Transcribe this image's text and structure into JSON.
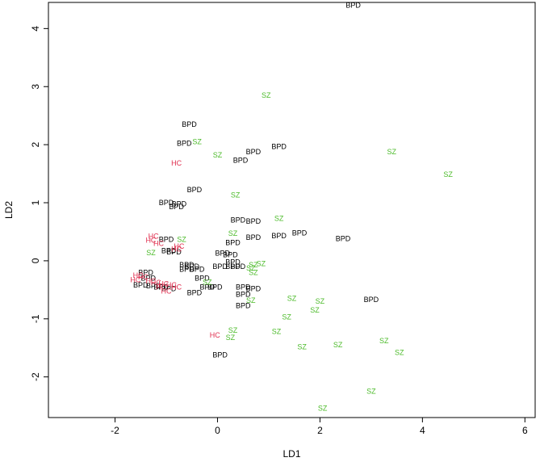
{
  "chart_data": {
    "type": "scatter",
    "title": "",
    "xlabel": "LD1",
    "ylabel": "LD2",
    "xlim": [
      -3.3,
      6.2
    ],
    "ylim": [
      -2.7,
      4.45
    ],
    "xticks": [
      -2,
      0,
      2,
      4,
      6
    ],
    "yticks": [
      -2,
      -1,
      0,
      1,
      2,
      3,
      4
    ],
    "xtick_labels": [
      "-2",
      "0",
      "2",
      "4",
      "6"
    ],
    "ytick_labels": [
      "-2",
      "-1",
      "0",
      "1",
      "2",
      "3",
      "4"
    ],
    "grid": false,
    "legend": "none",
    "group_colors": {
      "BPD": "#000000",
      "SZ": "#4CBB2A",
      "HC": "#E03050"
    },
    "series": [
      {
        "label": "BPD",
        "points": [
          [
            2.65,
            4.4
          ],
          [
            -0.55,
            2.35
          ],
          [
            -0.65,
            2.02
          ],
          [
            0.7,
            1.88
          ],
          [
            0.45,
            1.73
          ],
          [
            1.2,
            1.97
          ],
          [
            -0.45,
            1.22
          ],
          [
            -1.0,
            1.0
          ],
          [
            -0.75,
            0.98
          ],
          [
            -0.8,
            0.93
          ],
          [
            0.4,
            0.7
          ],
          [
            0.7,
            0.68
          ],
          [
            -1.0,
            0.37
          ],
          [
            0.7,
            0.4
          ],
          [
            1.2,
            0.43
          ],
          [
            1.6,
            0.48
          ],
          [
            2.45,
            0.38
          ],
          [
            0.3,
            0.31
          ],
          [
            -0.95,
            0.17
          ],
          [
            -0.85,
            0.15
          ],
          [
            0.1,
            0.13
          ],
          [
            0.25,
            0.1
          ],
          [
            0.3,
            -0.02
          ],
          [
            -0.6,
            -0.07
          ],
          [
            -0.5,
            -0.1
          ],
          [
            0.05,
            -0.1
          ],
          [
            0.3,
            -0.1
          ],
          [
            0.4,
            -0.1
          ],
          [
            -0.4,
            -0.15
          ],
          [
            -0.6,
            -0.15
          ],
          [
            -1.4,
            -0.2
          ],
          [
            -1.35,
            -0.3
          ],
          [
            -1.5,
            -0.42
          ],
          [
            -1.25,
            -0.43
          ],
          [
            -1.1,
            -0.45
          ],
          [
            -0.95,
            -0.48
          ],
          [
            -0.3,
            -0.3
          ],
          [
            -0.05,
            -0.45
          ],
          [
            -0.2,
            -0.45
          ],
          [
            0.5,
            -0.45
          ],
          [
            0.7,
            -0.48
          ],
          [
            0.5,
            -0.58
          ],
          [
            0.5,
            -0.77
          ],
          [
            -0.45,
            -0.55
          ],
          [
            3.0,
            -0.67
          ],
          [
            0.05,
            -1.62
          ]
        ]
      },
      {
        "label": "SZ",
        "points": [
          [
            0.95,
            2.85
          ],
          [
            -0.4,
            2.05
          ],
          [
            0.0,
            1.82
          ],
          [
            3.4,
            1.88
          ],
          [
            4.5,
            1.49
          ],
          [
            0.35,
            1.13
          ],
          [
            1.2,
            0.73
          ],
          [
            0.3,
            0.47
          ],
          [
            -0.7,
            0.37
          ],
          [
            -1.3,
            0.14
          ],
          [
            0.7,
            -0.07
          ],
          [
            0.85,
            -0.05
          ],
          [
            0.65,
            -0.13
          ],
          [
            0.7,
            -0.2
          ],
          [
            -0.2,
            -0.37
          ],
          [
            0.65,
            -0.68
          ],
          [
            1.45,
            -0.65
          ],
          [
            2.0,
            -0.7
          ],
          [
            1.9,
            -0.85
          ],
          [
            1.35,
            -0.97
          ],
          [
            0.3,
            -1.2
          ],
          [
            0.25,
            -1.32
          ],
          [
            1.15,
            -1.22
          ],
          [
            1.65,
            -1.48
          ],
          [
            2.35,
            -1.45
          ],
          [
            3.25,
            -1.38
          ],
          [
            3.55,
            -1.58
          ],
          [
            3.0,
            -2.25
          ],
          [
            2.05,
            -2.54
          ]
        ]
      },
      {
        "label": "HC",
        "points": [
          [
            -0.8,
            1.68
          ],
          [
            -1.25,
            0.42
          ],
          [
            -1.3,
            0.35
          ],
          [
            -1.15,
            0.3
          ],
          [
            -0.75,
            0.25
          ],
          [
            -0.8,
            0.2
          ],
          [
            -1.55,
            -0.25
          ],
          [
            -1.45,
            -0.28
          ],
          [
            -1.6,
            -0.33
          ],
          [
            -1.3,
            -0.35
          ],
          [
            -1.2,
            -0.38
          ],
          [
            -1.05,
            -0.4
          ],
          [
            -0.9,
            -0.42
          ],
          [
            -0.8,
            -0.45
          ],
          [
            -1.1,
            -0.45
          ],
          [
            -1.0,
            -0.52
          ],
          [
            -0.05,
            -1.28
          ]
        ]
      }
    ]
  }
}
